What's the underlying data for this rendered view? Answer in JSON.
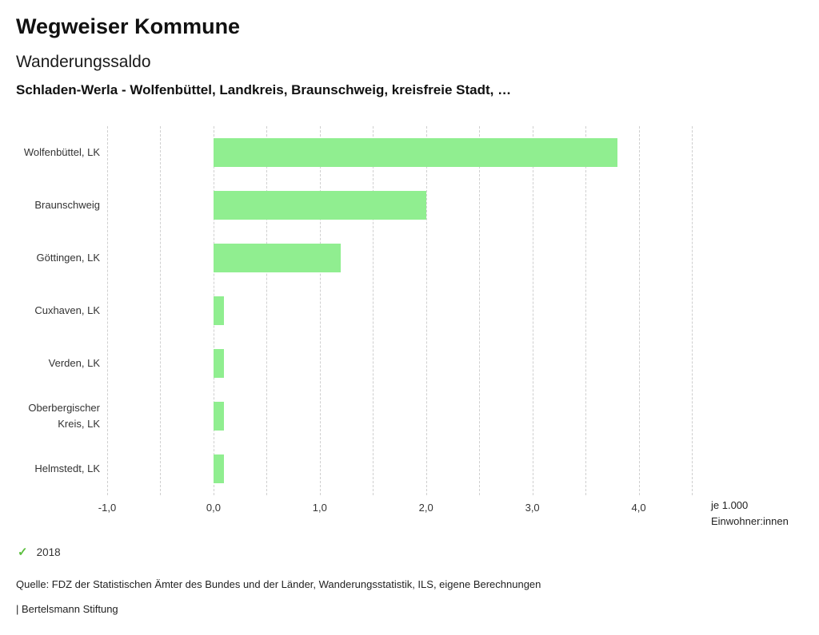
{
  "header": {
    "title": "Wegweiser Kommune",
    "subtitle": "Wanderungssaldo",
    "context": "Schladen-Werla - Wolfenbüttel, Landkreis, Braunschweig, kreisfreie Stadt, …"
  },
  "chart_data": {
    "type": "bar",
    "orientation": "horizontal",
    "title": "Wanderungssaldo",
    "categories": [
      "Wolfenbüttel, LK",
      "Braunschweig",
      "Göttingen, LK",
      "Cuxhaven, LK",
      "Verden, LK",
      "Oberbergischer Kreis, LK",
      "Helmstedt, LK"
    ],
    "values": [
      3.8,
      2.0,
      1.2,
      0.1,
      0.1,
      0.1,
      0.1
    ],
    "series_name": "2018",
    "xlim": [
      -1.0,
      4.5
    ],
    "grid_step": 0.5,
    "grid": true,
    "xticks": [
      -1.0,
      0.0,
      1.0,
      2.0,
      3.0,
      4.0
    ],
    "xtick_labels": [
      "-1,0",
      "0,0",
      "1,0",
      "2,0",
      "3,0",
      "4,0"
    ],
    "xlabel": "je 1.000 Einwohner:innen",
    "bar_color": "#90ee90",
    "grid_color": "#cfcfcf"
  },
  "legend": {
    "year": "2018",
    "check_icon": "✓",
    "check_color": "#5cbf3f"
  },
  "footer": {
    "source": "Quelle: FDZ der Statistischen Ämter des Bundes und der Länder, Wanderungsstatistik, ILS, eigene Berechnungen",
    "branding": "| Bertelsmann Stiftung"
  }
}
